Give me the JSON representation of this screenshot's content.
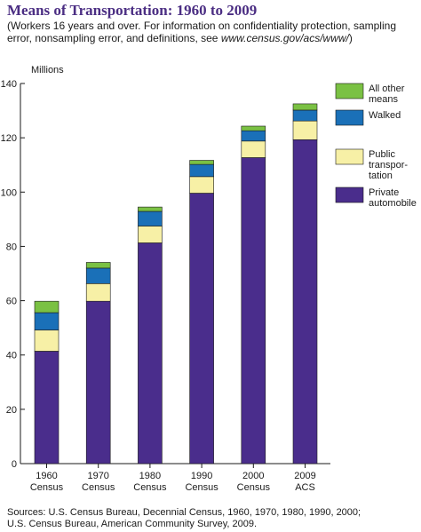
{
  "header": {
    "title": "Means of Transportation: 1960 to 2009",
    "subtitle_text": "(Workers 16 years and over. For information on confidentiality protection, sampling error, nonsampling error, and definitions, see ",
    "subtitle_url": "www.census.gov/acs/www/",
    "subtitle_close": ")"
  },
  "footer": {
    "source_line1": "Sources: U.S. Census Bureau, Decennial Census, 1960, 1970, 1980, 1990, 2000;",
    "source_line2": "U.S. Census Bureau, American Community Survey, 2009."
  },
  "chart_data": {
    "type": "bar",
    "stacked": true,
    "ylabel": "Millions",
    "ylim": [
      0,
      140
    ],
    "yticks": [
      0,
      20,
      40,
      60,
      80,
      100,
      120,
      140
    ],
    "grid": false,
    "legend_position": "right",
    "categories": [
      [
        "1960",
        "Census"
      ],
      [
        "1970",
        "Census"
      ],
      [
        "1980",
        "Census"
      ],
      [
        "1990",
        "Census"
      ],
      [
        "2000",
        "Census"
      ],
      [
        "2009",
        "ACS"
      ]
    ],
    "series": [
      {
        "name": "Private automobile",
        "legend_lines": [
          "Private",
          "automobile"
        ],
        "color": "#4a2d8c",
        "values": [
          41.4,
          59.8,
          81.3,
          99.6,
          112.7,
          119.3
        ]
      },
      {
        "name": "Public transportation",
        "legend_lines": [
          "Public",
          "transpor-",
          "tation"
        ],
        "color": "#f7f0a6",
        "values": [
          7.8,
          6.5,
          6.2,
          6.1,
          6.1,
          6.9
        ]
      },
      {
        "name": "Walked",
        "legend_lines": [
          "Walked"
        ],
        "color": "#1a70b8",
        "values": [
          6.4,
          5.7,
          5.4,
          4.5,
          3.8,
          4.0
        ]
      },
      {
        "name": "All other means",
        "legend_lines": [
          "All other",
          "means"
        ],
        "color": "#7ac143",
        "values": [
          4.2,
          2.1,
          1.6,
          1.5,
          1.7,
          2.3
        ]
      }
    ]
  }
}
